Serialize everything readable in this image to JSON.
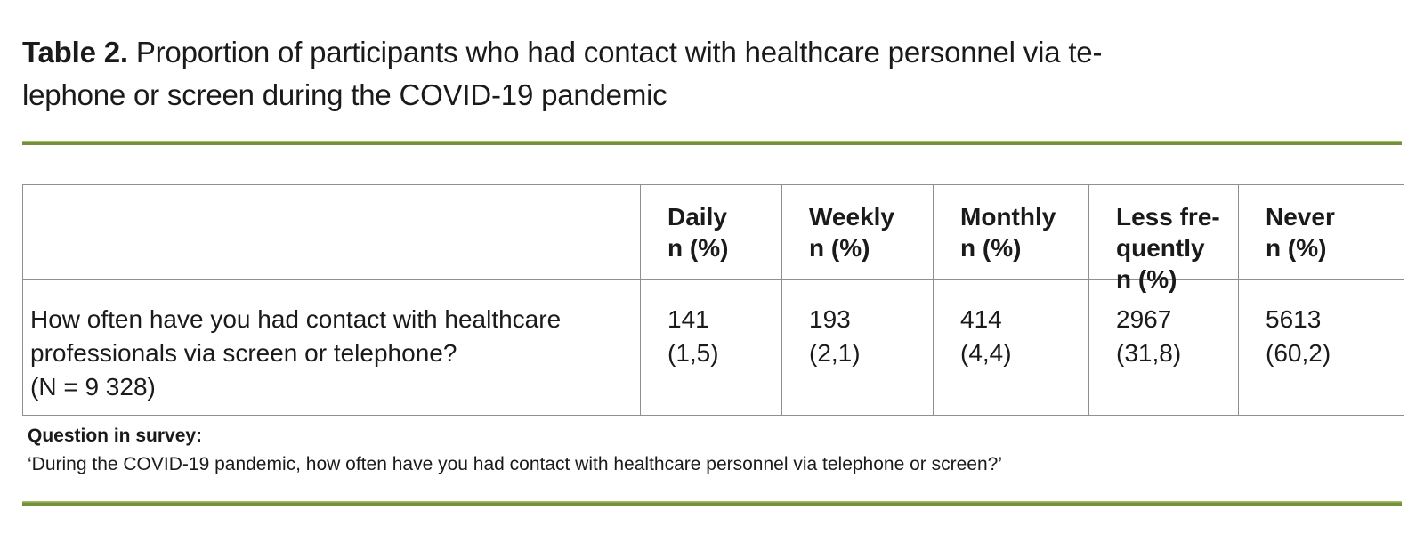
{
  "title": {
    "label": "Table 2.",
    "line1": "Proportion of participants who had contact with healthcare personnel via te-",
    "line2": "lephone or screen during the COVID-19 pandemic"
  },
  "table": {
    "header": {
      "stub": "",
      "daily": {
        "l1": "Daily",
        "l2": "n (%)"
      },
      "weekly": {
        "l1": "Weekly",
        "l2": "n (%)"
      },
      "monthly": {
        "l1": "Monthly",
        "l2": "n (%)"
      },
      "lessfreq": {
        "l1": "Less fre-",
        "l2": "quently",
        "l3": "n (%)"
      },
      "never": {
        "l1": "Never",
        "l2": "n (%)"
      }
    },
    "row": {
      "question": {
        "line1": "How often have you had contact with healthcare",
        "line2": "professionals via screen or telephone?",
        "line3": "(N = 9 328)"
      },
      "values": [
        {
          "n": "141",
          "pct": "(1,5)"
        },
        {
          "n": "193",
          "pct": "(2,1)"
        },
        {
          "n": "414",
          "pct": "(4,4)"
        },
        {
          "n": "2967",
          "pct": "(31,8)"
        },
        {
          "n": "5613",
          "pct": "(60,2)"
        }
      ]
    }
  },
  "footnote": {
    "label": "Question in survey:",
    "text": "‘During the COVID-19 pandemic, how often have you had contact with healthcare personnel via telephone or screen?’"
  },
  "colors": {
    "accent_green": "#74913a",
    "accent_green_light": "#a4bd68",
    "border_gray": "#8f8f8f",
    "text": "#1a1a1a"
  }
}
